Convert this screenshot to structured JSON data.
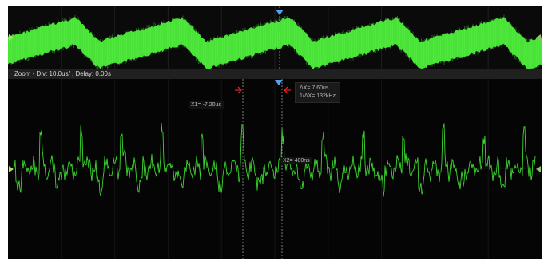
{
  "zoom_bar": {
    "text": "Zoom - Div: 10.0us/ ,  Delay: 0.00s"
  },
  "cursors": {
    "x1_label": "X1= -7.20us",
    "x2_label": "X2= 400ns",
    "delta_x": "ΔX= 7.60us",
    "inv_delta_x": "1/ΔX= 132kHz"
  },
  "colors": {
    "trace": "#3bd62e",
    "trace_overview": "#4cf03a",
    "cursor_arrow": "#e02020",
    "trigger": "#5aa0e8",
    "background": "#050505"
  },
  "icons": {
    "trigger_marker": "triangle-down",
    "channel_marker": "triangle-right",
    "cursor_arrow": "arrow"
  }
}
